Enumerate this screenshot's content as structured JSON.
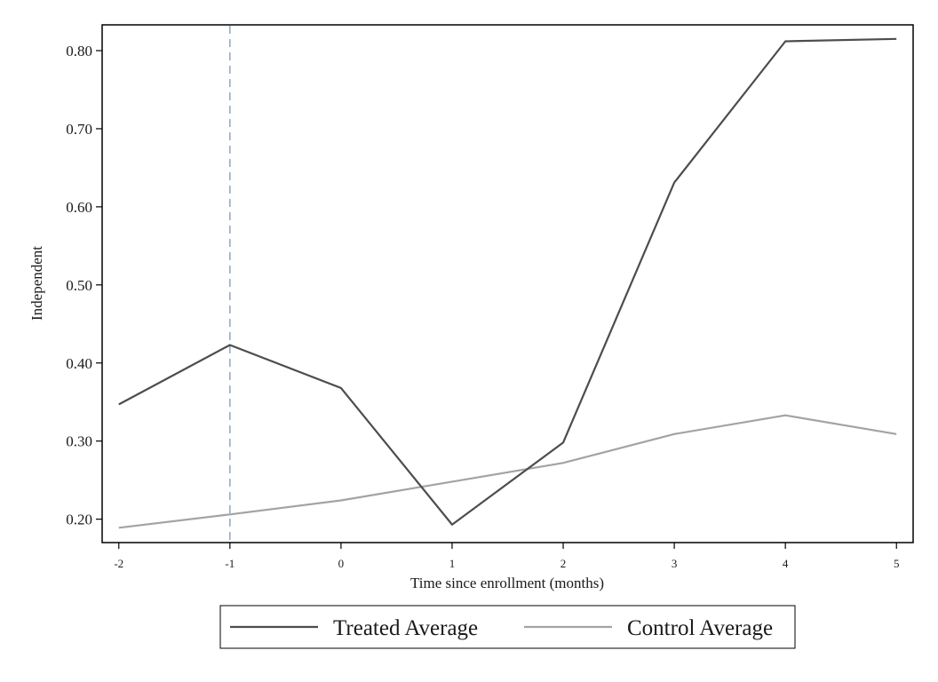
{
  "chart_data": {
    "type": "line",
    "title": "",
    "xlabel": "Time since enrollment (months)",
    "ylabel": "Independent",
    "x": [
      -2,
      -1,
      0,
      1,
      2,
      3,
      4,
      5
    ],
    "x_ticks": [
      "-2",
      "-1",
      "0",
      "1",
      "2",
      "3",
      "4",
      "5"
    ],
    "y_ticks": [
      "0.20",
      "0.30",
      "0.40",
      "0.50",
      "0.60",
      "0.70",
      "0.80"
    ],
    "y_tick_values": [
      0.2,
      0.3,
      0.4,
      0.5,
      0.6,
      0.7,
      0.8
    ],
    "xlim": [
      -2.15,
      5.15
    ],
    "ylim": [
      0.17,
      0.833
    ],
    "reference_line": {
      "x": -1,
      "style": "dashed",
      "color": "#8fa6c4"
    },
    "series": [
      {
        "name": "Treated Average",
        "color": "#4d4d4d",
        "values": [
          0.347,
          0.423,
          0.368,
          0.193,
          0.298,
          0.631,
          0.812,
          0.815
        ]
      },
      {
        "name": "Control Average",
        "color": "#a3a3a3",
        "values": [
          0.189,
          0.206,
          0.224,
          0.248,
          0.272,
          0.309,
          0.333,
          0.309
        ]
      }
    ],
    "legend_position": "bottom",
    "grid": false
  }
}
